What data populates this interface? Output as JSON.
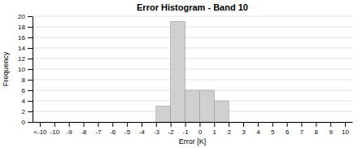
{
  "chart_data": {
    "type": "histogram",
    "title": "Error Histogram - Band 10",
    "xlabel": "Error [K]",
    "ylabel": "Frequency",
    "bins": [
      -3,
      -2,
      -1,
      0,
      1,
      2
    ],
    "values": [
      3,
      19,
      6,
      6,
      4
    ],
    "color": "#d0d0d0",
    "xlim": [
      -11.5,
      10.5
    ],
    "xticks": [
      {
        "value": -11,
        "label": "<-10"
      },
      -10,
      -9,
      -8,
      -7,
      -6,
      -5,
      -4,
      -3,
      -2,
      -1,
      0,
      1,
      2,
      3,
      4,
      5,
      6,
      7,
      8,
      9,
      10
    ],
    "ylim": [
      0,
      20
    ],
    "yticks": [
      0,
      2,
      4,
      6,
      8,
      10,
      12,
      14,
      16,
      18,
      20
    ],
    "grid": true
  }
}
